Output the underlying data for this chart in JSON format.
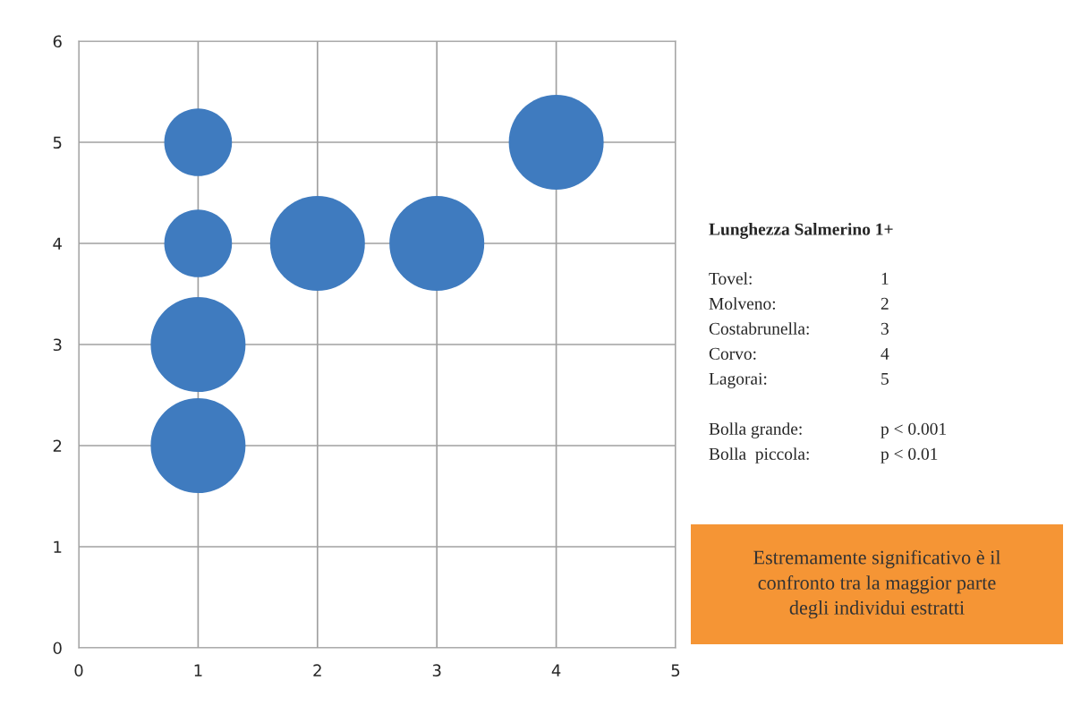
{
  "chart_data": {
    "type": "bubble",
    "title": "Lunghezza Salmerino 1+",
    "x": [
      1,
      1,
      1,
      1,
      2,
      3,
      4
    ],
    "values": [
      5,
      4,
      3,
      2,
      4,
      4,
      5
    ],
    "sizes": [
      0.51,
      0.51,
      1,
      1,
      1,
      1,
      1
    ],
    "color": "#3f7bbf",
    "xlim": [
      0,
      5
    ],
    "ylim": [
      0,
      6
    ],
    "xticks": [
      0,
      1,
      2,
      3,
      4,
      5
    ],
    "yticks": [
      0,
      1,
      2,
      3,
      4,
      5,
      6
    ],
    "grid": true,
    "legend": false,
    "annotations": [
      "Tovel:",
      "1",
      "Molveno:",
      "2",
      "Costabrunella:",
      "3",
      "Corvo:",
      "4",
      "Lagorai:",
      "5",
      "Bolla grande:",
      "p < 0.001",
      "Bolla  piccola:",
      "p < 0.01",
      "Estremamente significativo è il\nconfronto tra la maggior parte\ndegli individui estratti"
    ]
  }
}
